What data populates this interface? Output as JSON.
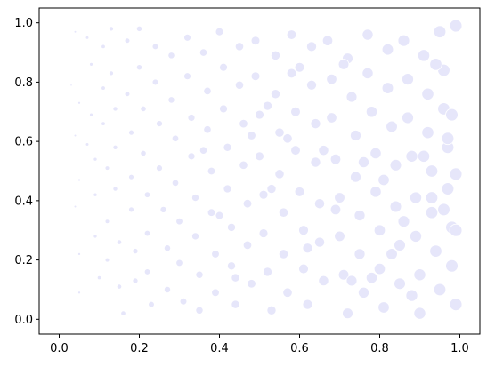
{
  "chart_data": {
    "type": "scatter",
    "title": "",
    "xlabel": "",
    "ylabel": "",
    "xlim": [
      -0.05,
      1.05
    ],
    "ylim": [
      -0.05,
      1.05
    ],
    "grid": false,
    "legend": "none",
    "marker_color": "#e6e6fa",
    "marker_edge_color": "#ffffff",
    "marker_size_encodes": "x",
    "x_ticks": [
      "0.0",
      "0.2",
      "0.4",
      "0.6",
      "0.8",
      "1.0"
    ],
    "y_ticks": [
      "0.0",
      "0.2",
      "0.4",
      "0.6",
      "0.8",
      "1.0"
    ],
    "x_tick_values": [
      0,
      0.2,
      0.4,
      0.6,
      0.8,
      1.0
    ],
    "y_tick_values": [
      0,
      0.2,
      0.4,
      0.6,
      0.8,
      1.0
    ],
    "points": [
      [
        0.04,
        0.97
      ],
      [
        0.03,
        0.79
      ],
      [
        0.05,
        0.73
      ],
      [
        0.04,
        0.62
      ],
      [
        0.05,
        0.47
      ],
      [
        0.04,
        0.38
      ],
      [
        0.05,
        0.22
      ],
      [
        0.05,
        0.09
      ],
      [
        0.07,
        0.95
      ],
      [
        0.07,
        0.59
      ],
      [
        0.08,
        0.86
      ],
      [
        0.08,
        0.69
      ],
      [
        0.09,
        0.54
      ],
      [
        0.09,
        0.42
      ],
      [
        0.09,
        0.28
      ],
      [
        0.1,
        0.14
      ],
      [
        0.11,
        0.92
      ],
      [
        0.11,
        0.78
      ],
      [
        0.11,
        0.66
      ],
      [
        0.12,
        0.51
      ],
      [
        0.12,
        0.33
      ],
      [
        0.12,
        0.2
      ],
      [
        0.13,
        0.98
      ],
      [
        0.13,
        0.83
      ],
      [
        0.14,
        0.71
      ],
      [
        0.14,
        0.58
      ],
      [
        0.14,
        0.44
      ],
      [
        0.15,
        0.26
      ],
      [
        0.15,
        0.11
      ],
      [
        0.16,
        0.02
      ],
      [
        0.17,
        0.94
      ],
      [
        0.17,
        0.76
      ],
      [
        0.18,
        0.63
      ],
      [
        0.18,
        0.48
      ],
      [
        0.18,
        0.37
      ],
      [
        0.19,
        0.23
      ],
      [
        0.19,
        0.13
      ],
      [
        0.2,
        0.98
      ],
      [
        0.2,
        0.85
      ],
      [
        0.21,
        0.71
      ],
      [
        0.21,
        0.56
      ],
      [
        0.22,
        0.42
      ],
      [
        0.22,
        0.29
      ],
      [
        0.22,
        0.16
      ],
      [
        0.23,
        0.05
      ],
      [
        0.24,
        0.92
      ],
      [
        0.24,
        0.8
      ],
      [
        0.25,
        0.66
      ],
      [
        0.25,
        0.51
      ],
      [
        0.26,
        0.37
      ],
      [
        0.27,
        0.24
      ],
      [
        0.27,
        0.1
      ],
      [
        0.28,
        0.89
      ],
      [
        0.28,
        0.74
      ],
      [
        0.29,
        0.61
      ],
      [
        0.29,
        0.46
      ],
      [
        0.3,
        0.33
      ],
      [
        0.3,
        0.19
      ],
      [
        0.31,
        0.06
      ],
      [
        0.32,
        0.95
      ],
      [
        0.32,
        0.82
      ],
      [
        0.33,
        0.68
      ],
      [
        0.33,
        0.55
      ],
      [
        0.34,
        0.41
      ],
      [
        0.34,
        0.28
      ],
      [
        0.35,
        0.15
      ],
      [
        0.35,
        0.03
      ],
      [
        0.36,
        0.9
      ],
      [
        0.37,
        0.77
      ],
      [
        0.37,
        0.64
      ],
      [
        0.38,
        0.5
      ],
      [
        0.38,
        0.36
      ],
      [
        0.39,
        0.22
      ],
      [
        0.39,
        0.09
      ],
      [
        0.4,
        0.97
      ],
      [
        0.41,
        0.85
      ],
      [
        0.41,
        0.71
      ],
      [
        0.42,
        0.58
      ],
      [
        0.42,
        0.44
      ],
      [
        0.43,
        0.31
      ],
      [
        0.43,
        0.18
      ],
      [
        0.44,
        0.05
      ],
      [
        0.45,
        0.92
      ],
      [
        0.45,
        0.79
      ],
      [
        0.46,
        0.66
      ],
      [
        0.46,
        0.52
      ],
      [
        0.47,
        0.39
      ],
      [
        0.47,
        0.25
      ],
      [
        0.48,
        0.12
      ],
      [
        0.49,
        0.94
      ],
      [
        0.49,
        0.82
      ],
      [
        0.5,
        0.69
      ],
      [
        0.5,
        0.55
      ],
      [
        0.51,
        0.42
      ],
      [
        0.51,
        0.29
      ],
      [
        0.52,
        0.16
      ],
      [
        0.53,
        0.03
      ],
      [
        0.54,
        0.89
      ],
      [
        0.54,
        0.76
      ],
      [
        0.55,
        0.63
      ],
      [
        0.55,
        0.49
      ],
      [
        0.56,
        0.36
      ],
      [
        0.56,
        0.22
      ],
      [
        0.57,
        0.09
      ],
      [
        0.58,
        0.96
      ],
      [
        0.58,
        0.83
      ],
      [
        0.59,
        0.7
      ],
      [
        0.59,
        0.57
      ],
      [
        0.6,
        0.43
      ],
      [
        0.61,
        0.3
      ],
      [
        0.61,
        0.17
      ],
      [
        0.62,
        0.05
      ],
      [
        0.63,
        0.92
      ],
      [
        0.63,
        0.79
      ],
      [
        0.64,
        0.66
      ],
      [
        0.64,
        0.53
      ],
      [
        0.65,
        0.39
      ],
      [
        0.65,
        0.26
      ],
      [
        0.66,
        0.13
      ],
      [
        0.67,
        0.94
      ],
      [
        0.68,
        0.81
      ],
      [
        0.68,
        0.68
      ],
      [
        0.69,
        0.54
      ],
      [
        0.7,
        0.41
      ],
      [
        0.7,
        0.28
      ],
      [
        0.71,
        0.15
      ],
      [
        0.72,
        0.02
      ],
      [
        0.72,
        0.88
      ],
      [
        0.73,
        0.75
      ],
      [
        0.74,
        0.62
      ],
      [
        0.74,
        0.48
      ],
      [
        0.75,
        0.35
      ],
      [
        0.75,
        0.22
      ],
      [
        0.76,
        0.09
      ],
      [
        0.77,
        0.96
      ],
      [
        0.77,
        0.83
      ],
      [
        0.78,
        0.7
      ],
      [
        0.79,
        0.56
      ],
      [
        0.79,
        0.43
      ],
      [
        0.8,
        0.3
      ],
      [
        0.8,
        0.17
      ],
      [
        0.81,
        0.04
      ],
      [
        0.82,
        0.91
      ],
      [
        0.82,
        0.78
      ],
      [
        0.83,
        0.65
      ],
      [
        0.84,
        0.52
      ],
      [
        0.84,
        0.38
      ],
      [
        0.85,
        0.25
      ],
      [
        0.85,
        0.12
      ],
      [
        0.86,
        0.94
      ],
      [
        0.87,
        0.81
      ],
      [
        0.87,
        0.68
      ],
      [
        0.88,
        0.55
      ],
      [
        0.89,
        0.41
      ],
      [
        0.89,
        0.28
      ],
      [
        0.9,
        0.15
      ],
      [
        0.9,
        0.02
      ],
      [
        0.91,
        0.89
      ],
      [
        0.92,
        0.76
      ],
      [
        0.92,
        0.63
      ],
      [
        0.93,
        0.5
      ],
      [
        0.93,
        0.36
      ],
      [
        0.94,
        0.23
      ],
      [
        0.95,
        0.1
      ],
      [
        0.95,
        0.97
      ],
      [
        0.96,
        0.84
      ],
      [
        0.96,
        0.71
      ],
      [
        0.97,
        0.58
      ],
      [
        0.97,
        0.44
      ],
      [
        0.98,
        0.31
      ],
      [
        0.98,
        0.18
      ],
      [
        0.99,
        0.05
      ],
      [
        0.99,
        0.99
      ],
      [
        0.98,
        0.69
      ],
      [
        0.99,
        0.49
      ],
      [
        0.99,
        0.3
      ],
      [
        0.97,
        0.61
      ],
      [
        0.96,
        0.37
      ],
      [
        0.94,
        0.86
      ],
      [
        0.93,
        0.41
      ],
      [
        0.91,
        0.55
      ],
      [
        0.88,
        0.08
      ],
      [
        0.86,
        0.33
      ],
      [
        0.83,
        0.22
      ],
      [
        0.81,
        0.47
      ],
      [
        0.78,
        0.14
      ],
      [
        0.76,
        0.53
      ],
      [
        0.73,
        0.13
      ],
      [
        0.71,
        0.86
      ],
      [
        0.69,
        0.37
      ],
      [
        0.66,
        0.57
      ],
      [
        0.62,
        0.24
      ],
      [
        0.6,
        0.85
      ],
      [
        0.57,
        0.61
      ],
      [
        0.53,
        0.44
      ],
      [
        0.52,
        0.72
      ],
      [
        0.48,
        0.62
      ],
      [
        0.44,
        0.14
      ],
      [
        0.4,
        0.35
      ],
      [
        0.36,
        0.57
      ]
    ]
  }
}
